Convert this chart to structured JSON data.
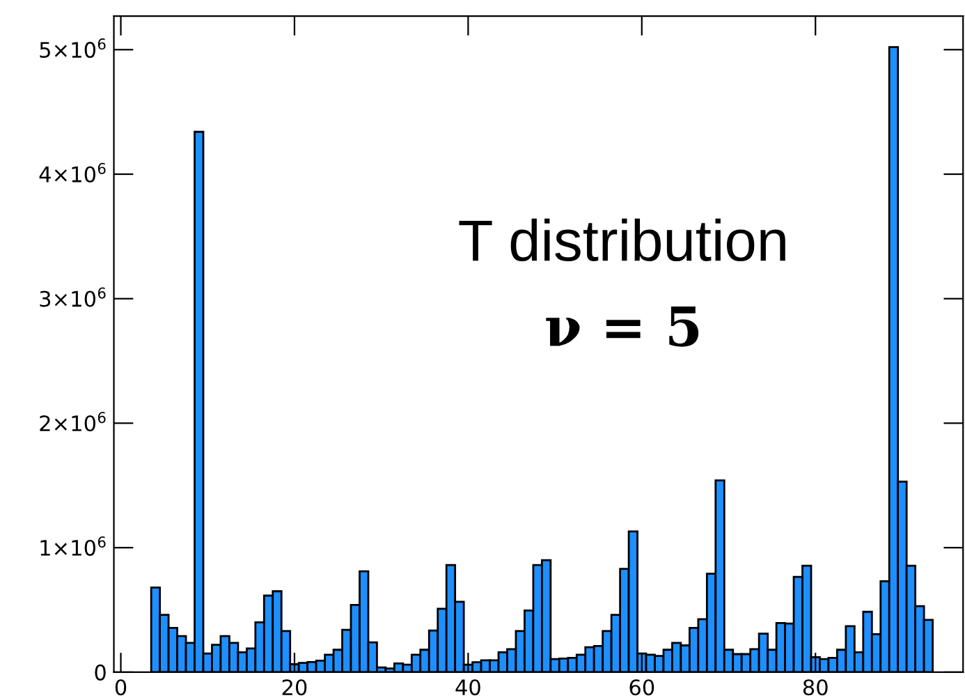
{
  "chart_data": {
    "type": "histogram",
    "bins": [
      3.5,
      4.5,
      5.5,
      6.5,
      7.5,
      8.5,
      9.5,
      10.5,
      11.5,
      12.5,
      13.5,
      14.5,
      15.5,
      16.5,
      17.5,
      18.5,
      19.5,
      20.5,
      21.5,
      22.5,
      23.5,
      24.5,
      25.5,
      26.5,
      27.5,
      28.5,
      29.5,
      30.5,
      31.5,
      32.5,
      33.5,
      34.5,
      35.5,
      36.5,
      37.5,
      38.5,
      39.5,
      40.5,
      41.5,
      42.5,
      43.5,
      44.5,
      45.5,
      46.5,
      47.5,
      48.5,
      49.5,
      50.5,
      51.5,
      52.5,
      53.5,
      54.5,
      55.5,
      56.5,
      57.5,
      58.5,
      59.5,
      60.5,
      61.5,
      62.5,
      63.5,
      64.5,
      65.5,
      66.5,
      67.5,
      68.5,
      69.5,
      70.5,
      71.5,
      72.5,
      73.5,
      74.5,
      75.5,
      76.5,
      77.5,
      78.5,
      79.5,
      80.5,
      81.5,
      82.5,
      83.5,
      84.5,
      85.5,
      86.5,
      87.5,
      88.5,
      89.5,
      90.5,
      91.5,
      92.5,
      93.5
    ],
    "values": [
      680000,
      460000,
      355000,
      290000,
      235000,
      4340000,
      150000,
      220000,
      290000,
      235000,
      160000,
      190000,
      400000,
      615000,
      650000,
      330000,
      64000,
      75000,
      82000,
      93000,
      140000,
      180000,
      340000,
      540000,
      810000,
      240000,
      38000,
      30000,
      70000,
      60000,
      140000,
      180000,
      335000,
      510000,
      860000,
      565000,
      60000,
      80000,
      95000,
      95000,
      160000,
      185000,
      330000,
      495000,
      860000,
      900000,
      105000,
      110000,
      115000,
      140000,
      200000,
      210000,
      330000,
      460000,
      830000,
      1130000,
      150000,
      140000,
      130000,
      180000,
      235000,
      215000,
      355000,
      425000,
      790000,
      1540000,
      180000,
      145000,
      145000,
      185000,
      310000,
      180000,
      395000,
      390000,
      765000,
      855000,
      120000,
      105000,
      115000,
      180000,
      370000,
      160000,
      485000,
      305000,
      730000,
      5020000,
      1530000,
      855000,
      530000,
      420000
    ],
    "color": "#1e8fff",
    "xlim": [
      -0.8,
      97
    ],
    "xticks": [
      0,
      20,
      40,
      60,
      80
    ],
    "ylim": [
      0,
      5270000
    ],
    "yticks": [
      0,
      {
        "value": 1000000,
        "label": "1×10$^{6}$"
      },
      {
        "value": 2000000,
        "label": "2×10$^{6}$"
      },
      {
        "value": 3000000,
        "label": "3×10$^{6}$"
      },
      {
        "value": 4000000,
        "label": "4×10$^{6}$"
      },
      {
        "value": 5000000,
        "label": "5×10$^{6}$"
      }
    ],
    "annotations": [
      "T distribution",
      "ν = 5"
    ]
  }
}
